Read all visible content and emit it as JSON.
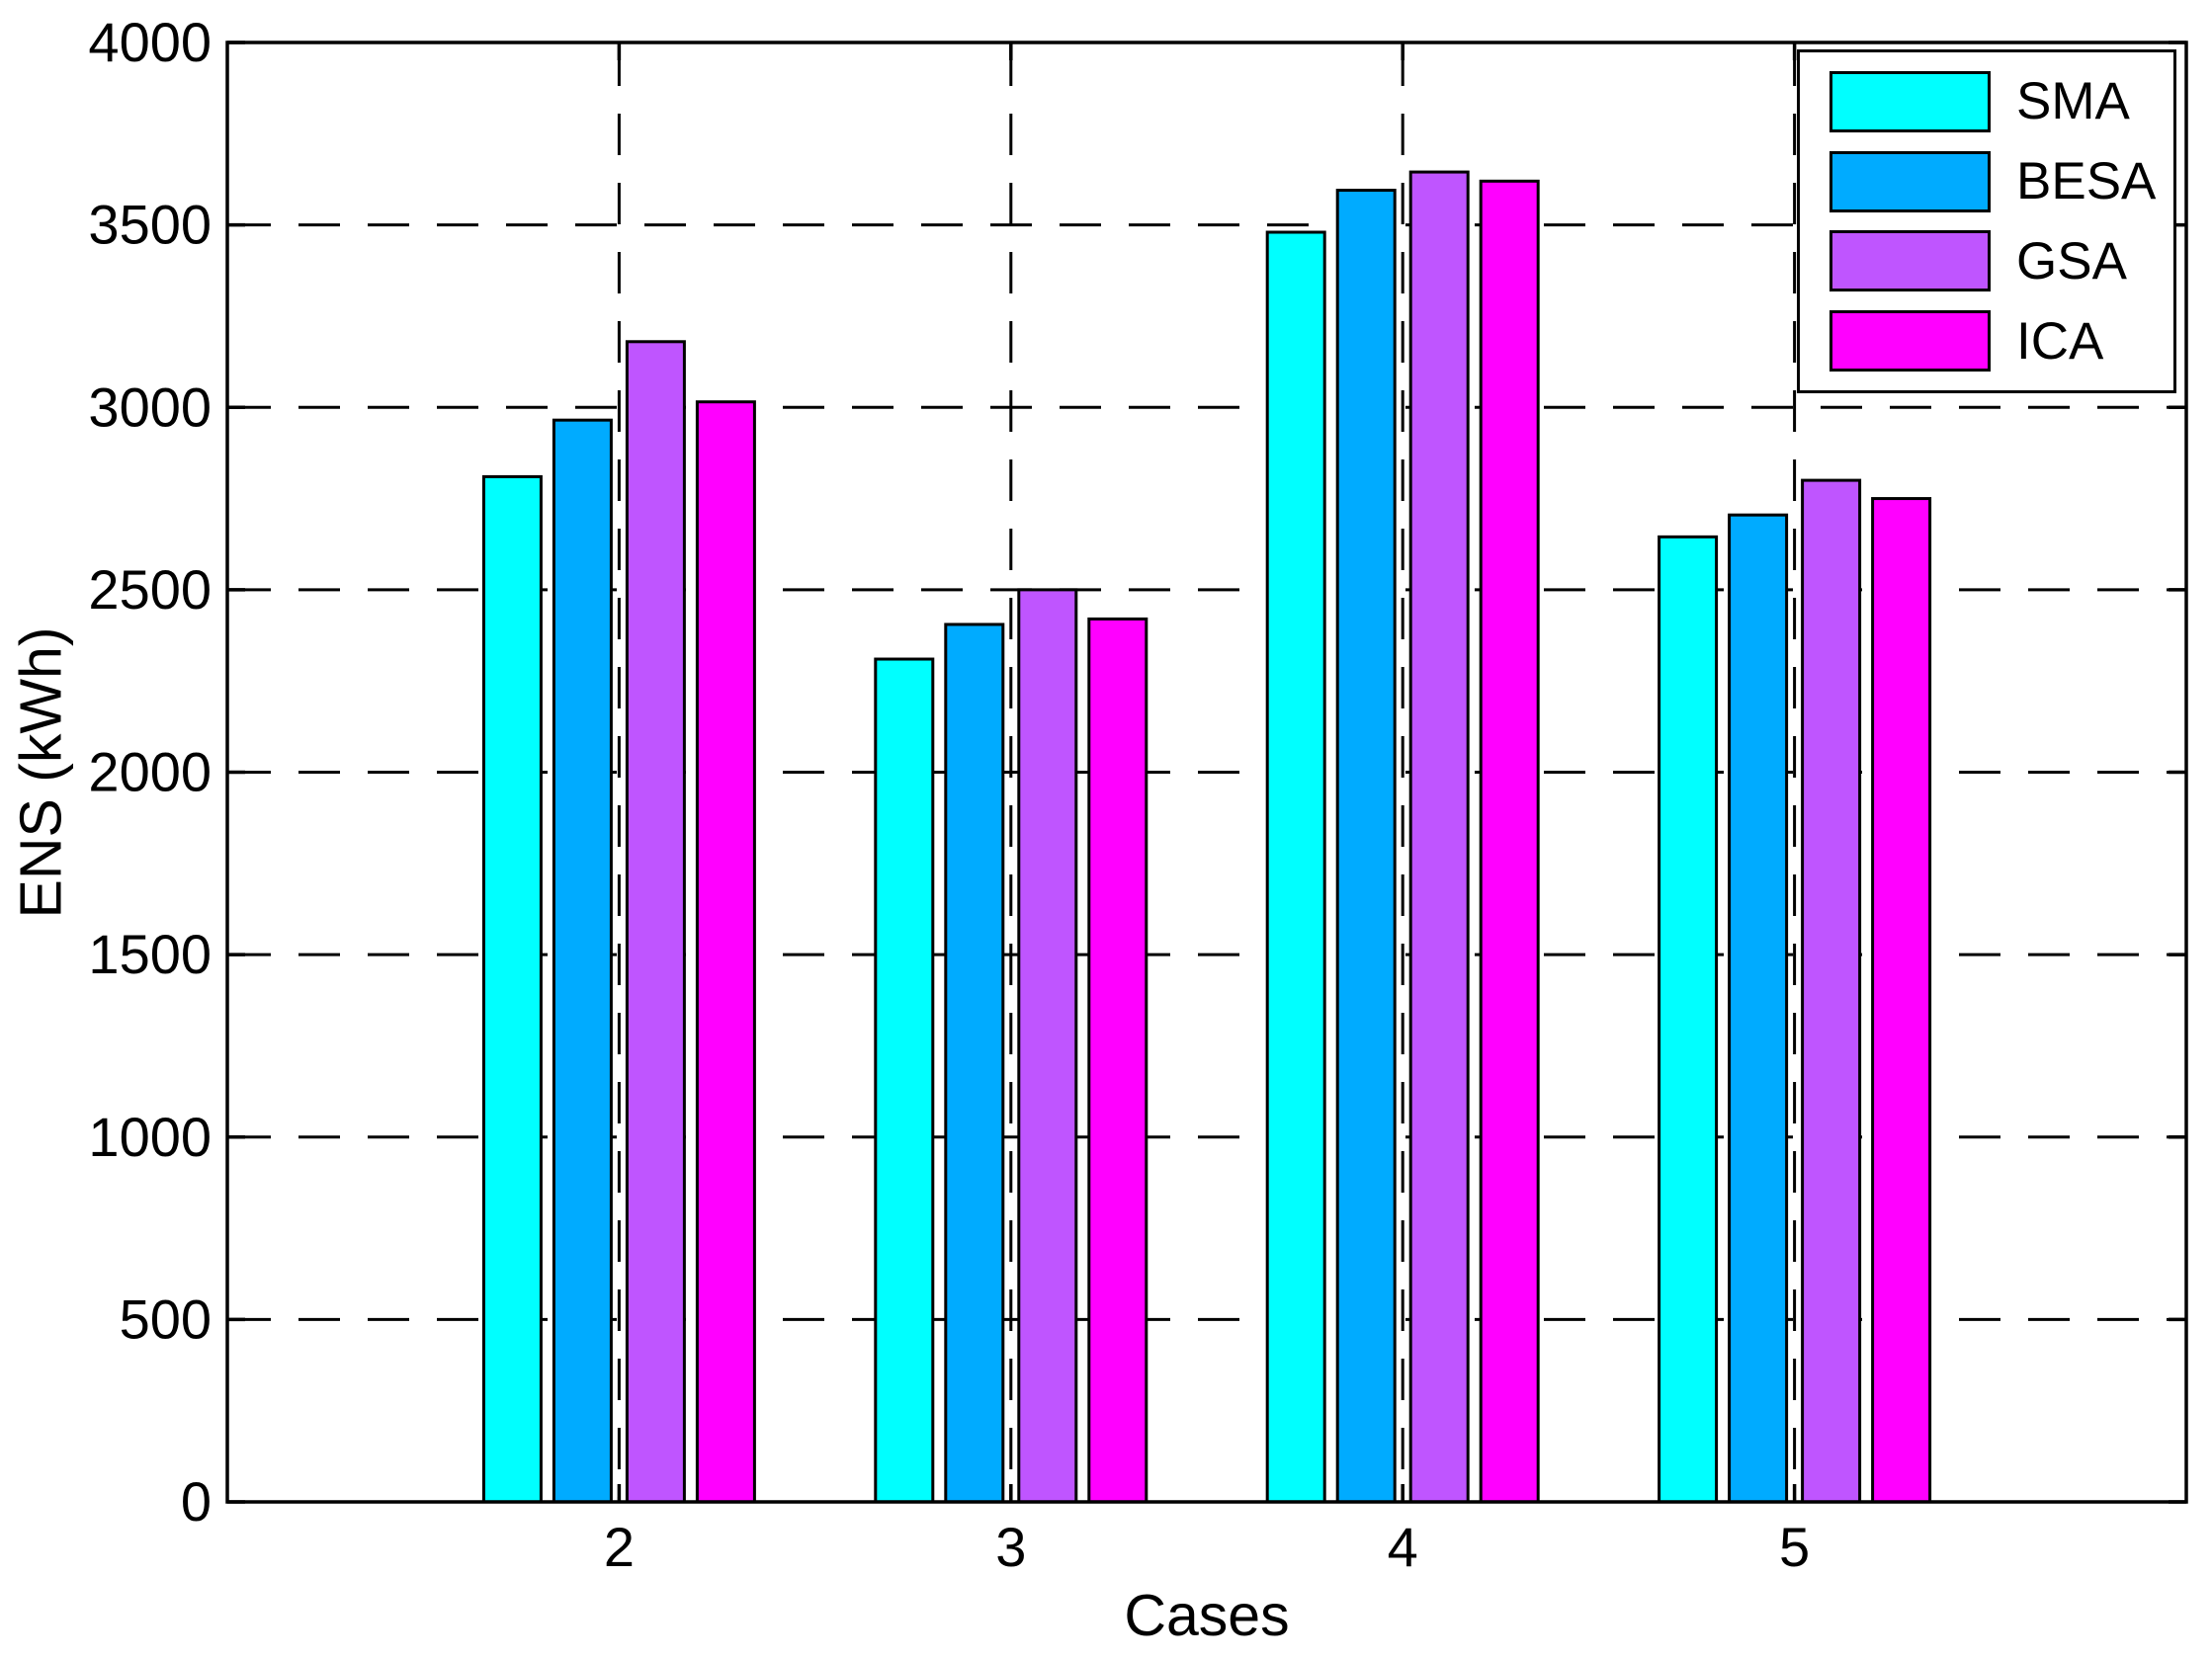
{
  "chart_data": {
    "type": "bar",
    "title": "",
    "xlabel": "Cases",
    "ylabel": "ENS (kWh)",
    "categories": [
      "2",
      "3",
      "4",
      "5"
    ],
    "series": [
      {
        "name": "SMA",
        "color": "#00FFFF",
        "values": [
          2810,
          2310,
          3480,
          2645
        ]
      },
      {
        "name": "BESA",
        "color": "#00ABFF",
        "values": [
          2965,
          2405,
          3595,
          2705
        ]
      },
      {
        "name": "GSA",
        "color": "#BF55FF",
        "values": [
          3180,
          2500,
          3645,
          2800
        ]
      },
      {
        "name": "ICA",
        "color": "#FF00FF",
        "values": [
          3015,
          2420,
          3620,
          2750
        ]
      }
    ],
    "ylim": [
      0,
      4000
    ],
    "ytick_step": 500,
    "yticks": [
      0,
      500,
      1000,
      1500,
      2000,
      2500,
      3000,
      3500,
      4000
    ],
    "xlim": [
      1,
      6
    ],
    "xtick_positions": [
      2,
      3,
      4,
      5
    ],
    "grid": "dashed",
    "grid_color": "#000000",
    "axis_color": "#000000",
    "bar_edge_color": "#000000",
    "background": "#FFFFFF",
    "legend_position": "top-right"
  }
}
